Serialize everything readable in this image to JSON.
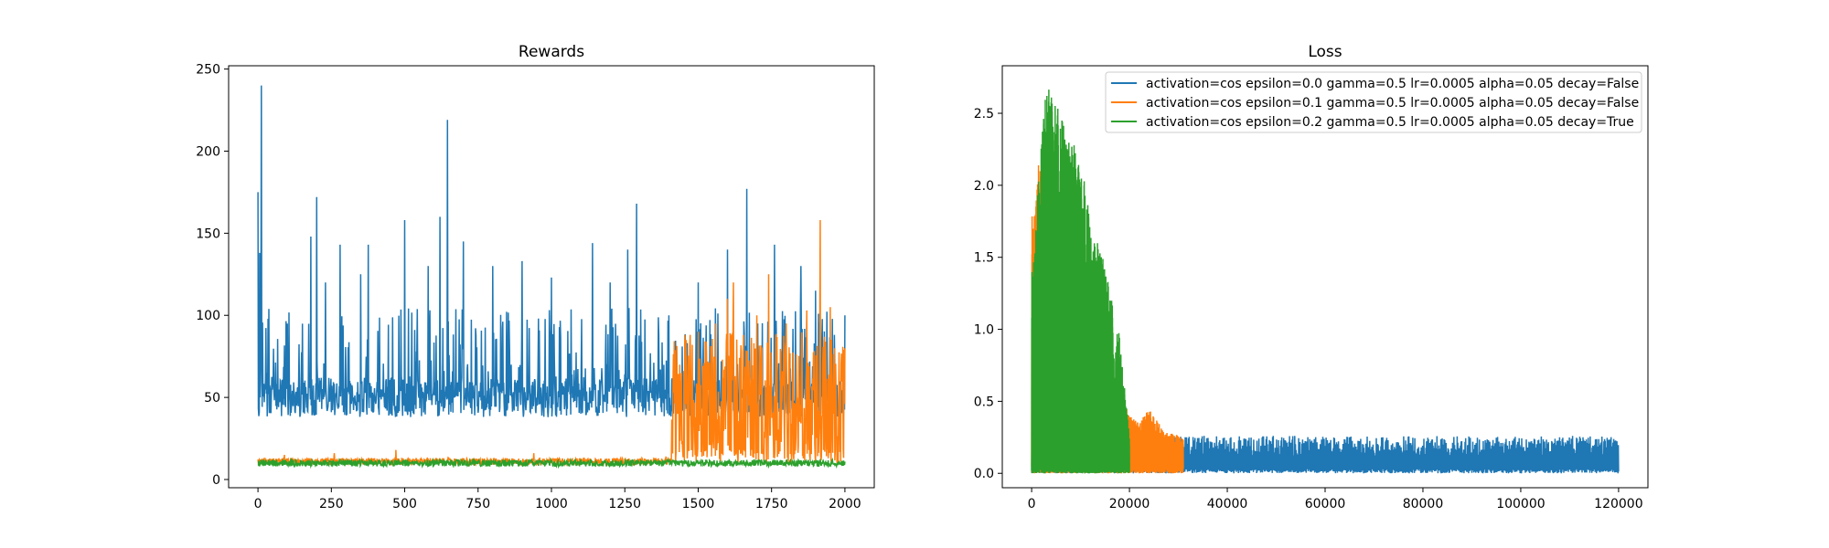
{
  "chart_data": [
    {
      "type": "line",
      "title": "Rewards",
      "xlabel": "",
      "ylabel": "",
      "xlim": [
        -100,
        2100
      ],
      "ylim": [
        -5,
        252
      ],
      "xticks": [
        0,
        250,
        500,
        750,
        1000,
        1250,
        1500,
        1750,
        2000
      ],
      "xtick_labels": [
        "0",
        "250",
        "500",
        "750",
        "1000",
        "1250",
        "1500",
        "1750",
        "2000"
      ],
      "yticks": [
        0,
        50,
        100,
        150,
        200,
        250
      ],
      "ytick_labels": [
        "0",
        "50",
        "100",
        "150",
        "200",
        "250"
      ],
      "grid": false,
      "series": [
        {
          "color": "#1f77b4",
          "x_range": [
            0,
            2000
          ],
          "baseline": [
            38,
            62
          ],
          "peaks": [
            [
              0,
              175
            ],
            [
              5,
              138
            ],
            [
              12,
              240
            ],
            [
              100,
              95
            ],
            [
              180,
              148
            ],
            [
              200,
              172
            ],
            [
              230,
              120
            ],
            [
              280,
              143
            ],
            [
              350,
              125
            ],
            [
              375,
              143
            ],
            [
              500,
              158
            ],
            [
              580,
              130
            ],
            [
              620,
              160
            ],
            [
              645,
              219
            ],
            [
              700,
              145
            ],
            [
              800,
              130
            ],
            [
              900,
              133
            ],
            [
              1000,
              123
            ],
            [
              1140,
              144
            ],
            [
              1200,
              120
            ],
            [
              1260,
              140
            ],
            [
              1290,
              168
            ],
            [
              1400,
              100
            ],
            [
              1500,
              120
            ],
            [
              1600,
              140
            ],
            [
              1665,
              177
            ],
            [
              1760,
              143
            ],
            [
              1850,
              130
            ],
            [
              1900,
              115
            ],
            [
              2000,
              100
            ]
          ]
        },
        {
          "color": "#ff7f0e",
          "x_range": [
            0,
            2000
          ],
          "baseline": [
            9,
            13
          ],
          "peaks": [
            [
              90,
              15
            ],
            [
              260,
              16
            ],
            [
              470,
              18
            ],
            [
              940,
              16
            ],
            [
              1390,
              14
            ],
            [
              1430,
              40
            ],
            [
              1460,
              70
            ],
            [
              1500,
              90
            ],
            [
              1560,
              95
            ],
            [
              1600,
              110
            ],
            [
              1620,
              120
            ],
            [
              1700,
              100
            ],
            [
              1740,
              125
            ],
            [
              1800,
              95
            ],
            [
              1870,
              103
            ],
            [
              1915,
              158
            ],
            [
              1950,
              105
            ],
            [
              2000,
              80
            ]
          ],
          "active_from": 1410,
          "active_range": [
            15,
            90
          ]
        },
        {
          "color": "#2ca02c",
          "x_range": [
            0,
            2000
          ],
          "baseline": [
            8,
            12
          ],
          "peaks": []
        }
      ]
    },
    {
      "type": "line",
      "title": "Loss",
      "xlabel": "",
      "ylabel": "",
      "xlim": [
        -6000,
        126000
      ],
      "ylim": [
        -0.1,
        2.83
      ],
      "xticks": [
        0,
        20000,
        40000,
        60000,
        80000,
        100000,
        120000
      ],
      "xtick_labels": [
        "0",
        "20000",
        "40000",
        "60000",
        "80000",
        "100000",
        "120000"
      ],
      "yticks": [
        0.0,
        0.5,
        1.0,
        1.5,
        2.0,
        2.5
      ],
      "ytick_labels": [
        "0.0",
        "0.5",
        "1.0",
        "1.5",
        "2.0",
        "2.5"
      ],
      "grid": false,
      "legend_position": "top-right",
      "series": [
        {
          "name": "activation=cos epsilon=0.0 gamma=0.5 lr=0.0005 alpha=0.05 decay=False",
          "color": "#1f77b4",
          "x_range": [
            0,
            120000
          ],
          "band_max": 0.26
        },
        {
          "name": "activation=cos epsilon=0.1 gamma=0.5 lr=0.0005 alpha=0.05 decay=False",
          "color": "#ff7f0e",
          "x_range": [
            0,
            31000
          ],
          "peaks": [
            [
              500,
              1.8
            ],
            [
              1500,
              2.2
            ],
            [
              3000,
              1.9
            ],
            [
              20000,
              0.4
            ],
            [
              22000,
              0.35
            ],
            [
              24000,
              0.45
            ],
            [
              27000,
              0.3
            ],
            [
              31000,
              0.25
            ]
          ]
        },
        {
          "name": "activation=cos epsilon=0.2 gamma=0.5 lr=0.0005 alpha=0.05 decay=True",
          "color": "#2ca02c",
          "x_range": [
            0,
            20000
          ],
          "peaks": [
            [
              300,
              1.4
            ],
            [
              1500,
              2.1
            ],
            [
              2500,
              2.5
            ],
            [
              3000,
              2.7
            ],
            [
              4500,
              2.6
            ],
            [
              6000,
              2.5
            ],
            [
              7500,
              2.3
            ],
            [
              9000,
              2.28
            ],
            [
              11000,
              2.0
            ],
            [
              12500,
              1.6
            ],
            [
              14000,
              1.6
            ],
            [
              16500,
              1.2
            ],
            [
              17000,
              0.7
            ],
            [
              17500,
              1.1
            ],
            [
              20000,
              0.25
            ]
          ]
        }
      ]
    }
  ]
}
